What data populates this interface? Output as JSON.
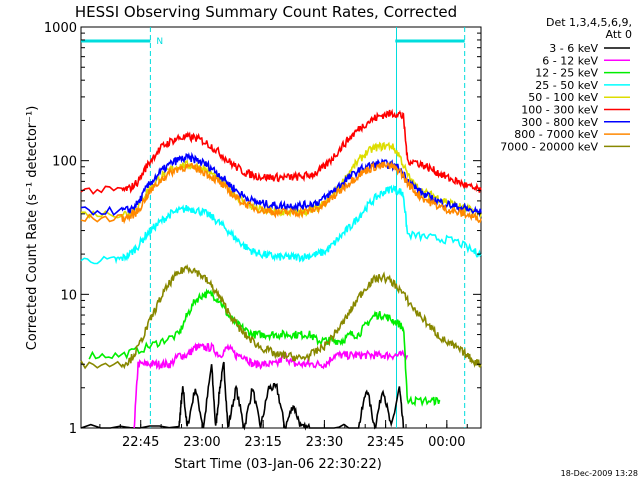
{
  "chart_data": {
    "type": "line",
    "title": "HESSI Observing Summary Count Rates, Corrected",
    "xlabel": "Start Time (03-Jan-06 22:30:22)",
    "ylabel": "Corrected Count Rate (s⁻¹ detector⁻¹)",
    "yscale": "log",
    "ylim": [
      1,
      1000
    ],
    "xlim_minutes": [
      0,
      98
    ],
    "x_ticks": [
      "22:45",
      "23:00",
      "23:15",
      "23:30",
      "23:45",
      "00:00"
    ],
    "y_ticks": [
      "1",
      "10",
      "100",
      "1000"
    ],
    "legend_header": [
      "Det 1,3,4,5,6,9,",
      "Att 0"
    ],
    "legend_position": "right",
    "footer": "18-Dec-2009 13:28",
    "night_marker": "N",
    "series": [
      {
        "name": "3 - 6 keV",
        "color": "#000000",
        "x": [
          0,
          24,
          24.5,
          25,
          26,
          28,
          30,
          32,
          33,
          34,
          35,
          36,
          38,
          40,
          42,
          44,
          46,
          48,
          50,
          52,
          54,
          56,
          68,
          70,
          72,
          74,
          76,
          78,
          79
        ],
        "y": [
          1,
          1,
          1.5,
          2,
          1,
          2,
          1,
          3,
          1,
          2,
          3,
          1,
          2,
          1,
          2,
          1,
          2,
          2,
          1,
          1.5,
          1,
          1,
          1,
          2,
          1,
          2,
          1,
          2,
          1
        ]
      },
      {
        "name": "6 - 12 keV",
        "color": "#ff00ff",
        "x": [
          13,
          14,
          16,
          18,
          20,
          22,
          24,
          26,
          28,
          30,
          32,
          34,
          36,
          38,
          40,
          42,
          44,
          46,
          48,
          50,
          52,
          54,
          56,
          58,
          60,
          62,
          64,
          66,
          68,
          70,
          72,
          74,
          76,
          78,
          80
        ],
        "y": [
          1,
          3,
          3,
          3,
          3,
          3,
          3.5,
          3.5,
          4,
          4,
          4,
          3.5,
          4,
          3.5,
          3.5,
          3,
          3,
          3,
          3,
          3.5,
          3,
          3,
          3,
          3,
          3,
          3.5,
          3.5,
          3.5,
          3.5,
          3.5,
          3.5,
          3.5,
          3.5,
          3.5,
          3.5
        ]
      },
      {
        "name": "12 - 25 keV",
        "color": "#00ee00",
        "x": [
          2,
          10,
          16,
          20,
          24,
          26,
          28,
          30,
          32,
          34,
          36,
          38,
          40,
          42,
          44,
          46,
          48,
          50,
          52,
          54,
          56,
          58,
          60,
          62,
          64,
          66,
          68,
          70,
          72,
          74,
          76,
          78,
          79,
          80,
          82,
          86,
          88
        ],
        "y": [
          3.5,
          3.5,
          4,
          4.5,
          5,
          7,
          9,
          10,
          10,
          9,
          7,
          6,
          5.5,
          5,
          5,
          5,
          5,
          5,
          5,
          5,
          5,
          4.5,
          4.5,
          4.5,
          4.5,
          5,
          5,
          6,
          7,
          7,
          6.5,
          6,
          5.5,
          1.6,
          1.6,
          1.6,
          1.6
        ]
      },
      {
        "name": "25 - 50 keV",
        "color": "#00ffff",
        "x": [
          0,
          8,
          10,
          12,
          14,
          16,
          18,
          20,
          22,
          24,
          26,
          28,
          30,
          32,
          34,
          36,
          38,
          40,
          42,
          44,
          46,
          48,
          50,
          52,
          54,
          56,
          58,
          60,
          62,
          64,
          66,
          68,
          70,
          72,
          74,
          76,
          78,
          79,
          80,
          84,
          88,
          92,
          96,
          98
        ],
        "y": [
          18,
          18,
          18.5,
          20,
          23,
          28,
          32,
          36,
          40,
          42,
          44,
          43,
          41,
          38,
          34,
          30,
          26,
          23,
          21,
          20,
          19.5,
          19,
          19,
          19,
          19,
          19.5,
          20,
          21,
          24,
          28,
          32,
          38,
          45,
          52,
          58,
          62,
          60,
          55,
          28,
          27,
          26,
          25,
          21,
          20
        ]
      },
      {
        "name": "50 - 100 keV",
        "color": "#dddd00",
        "x": [
          0,
          10,
          12,
          14,
          16,
          18,
          20,
          22,
          24,
          26,
          28,
          30,
          32,
          34,
          36,
          38,
          40,
          42,
          44,
          46,
          48,
          50,
          52,
          54,
          56,
          58,
          60,
          62,
          64,
          66,
          68,
          70,
          72,
          74,
          76,
          78,
          80,
          82,
          84,
          86,
          88,
          90,
          92,
          94,
          96,
          98
        ],
        "y": [
          40,
          40,
          41,
          46,
          58,
          68,
          78,
          86,
          91,
          93,
          91,
          87,
          80,
          71,
          62,
          55,
          49,
          45,
          43,
          42,
          41,
          41,
          41,
          41,
          42,
          44,
          48,
          56,
          68,
          84,
          100,
          115,
          125,
          128,
          130,
          110,
          78,
          64,
          58,
          55,
          52,
          49,
          46,
          44,
          42,
          40
        ]
      },
      {
        "name": "100 - 300 keV",
        "color": "#ff0000",
        "x": [
          0,
          10,
          12,
          14,
          16,
          18,
          20,
          22,
          24,
          26,
          28,
          30,
          32,
          34,
          36,
          38,
          40,
          42,
          44,
          46,
          48,
          50,
          52,
          54,
          56,
          58,
          60,
          62,
          64,
          66,
          68,
          70,
          72,
          74,
          76,
          78,
          79,
          80,
          82,
          84,
          86,
          88,
          90,
          92,
          94,
          96,
          98
        ],
        "y": [
          60,
          60,
          62,
          70,
          90,
          110,
          128,
          140,
          148,
          150,
          148,
          140,
          128,
          114,
          100,
          90,
          82,
          78,
          76,
          75,
          75,
          75,
          75,
          76,
          78,
          82,
          92,
          108,
          128,
          150,
          172,
          192,
          208,
          220,
          225,
          225,
          210,
          100,
          98,
          92,
          86,
          80,
          74,
          70,
          66,
          62,
          60
        ]
      },
      {
        "name": "300 - 800 keV",
        "color": "#0000ff",
        "x": [
          0,
          10,
          12,
          14,
          16,
          18,
          20,
          22,
          24,
          26,
          28,
          30,
          32,
          34,
          36,
          38,
          40,
          42,
          44,
          46,
          48,
          50,
          52,
          54,
          56,
          58,
          60,
          62,
          64,
          66,
          68,
          70,
          72,
          74,
          76,
          78,
          80,
          82,
          84,
          86,
          88,
          90,
          92,
          94,
          96,
          98
        ],
        "y": [
          42,
          42,
          43,
          48,
          62,
          74,
          85,
          95,
          102,
          105,
          102,
          96,
          88,
          78,
          68,
          60,
          54,
          50,
          48,
          47,
          46,
          46,
          46,
          46,
          47,
          49,
          53,
          60,
          68,
          76,
          84,
          90,
          94,
          95,
          93,
          88,
          72,
          62,
          56,
          52,
          49,
          47,
          45,
          44,
          42,
          41
        ]
      },
      {
        "name": "800 - 7000 keV",
        "color": "#ff8800",
        "x": [
          0,
          10,
          12,
          14,
          16,
          18,
          20,
          22,
          24,
          26,
          28,
          30,
          32,
          34,
          36,
          38,
          40,
          42,
          44,
          46,
          48,
          50,
          52,
          54,
          56,
          58,
          60,
          62,
          64,
          66,
          68,
          70,
          72,
          74,
          76,
          78,
          80,
          82,
          84,
          86,
          88,
          90,
          92,
          94,
          96,
          98
        ],
        "y": [
          37,
          37,
          38,
          42,
          54,
          64,
          74,
          82,
          88,
          90,
          88,
          83,
          76,
          68,
          60,
          53,
          48,
          45,
          43,
          42,
          41,
          41,
          41,
          41,
          42,
          44,
          48,
          54,
          62,
          70,
          78,
          85,
          90,
          92,
          90,
          85,
          68,
          58,
          52,
          48,
          45,
          43,
          41,
          40,
          38,
          37
        ]
      },
      {
        "name": "7000 - 20000 keV",
        "color": "#888800",
        "x": [
          0,
          10,
          12,
          14,
          16,
          18,
          20,
          22,
          24,
          26,
          28,
          30,
          32,
          34,
          36,
          38,
          40,
          42,
          44,
          46,
          48,
          50,
          52,
          54,
          56,
          58,
          60,
          62,
          64,
          66,
          68,
          70,
          72,
          74,
          76,
          78,
          80,
          82,
          84,
          86,
          88,
          90,
          92,
          94,
          96,
          98
        ],
        "y": [
          3,
          3,
          3.2,
          4,
          5.5,
          7.5,
          10,
          12.5,
          14.5,
          16,
          15,
          13.5,
          11.5,
          9.5,
          7.5,
          6,
          5,
          4.5,
          4,
          3.8,
          3.5,
          3.5,
          3.4,
          3.3,
          3.5,
          3.8,
          4.2,
          5,
          6,
          7.5,
          9.5,
          11.5,
          13,
          13.5,
          12.5,
          11,
          9,
          7.5,
          6.5,
          5.5,
          4.8,
          4.3,
          4,
          3.6,
          3.2,
          3
        ]
      }
    ]
  }
}
